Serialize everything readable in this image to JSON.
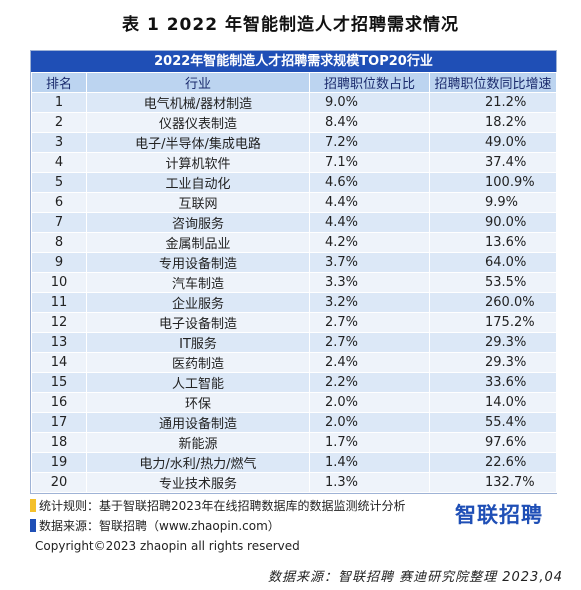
{
  "title": "表 1  2022 年智能制造人才招聘需求情况",
  "table": {
    "banner": "2022年智能制造人才招聘需求规模TOP20行业",
    "headers": [
      "排名",
      "行业",
      "招聘职位数占比",
      "招聘职位数同比增速"
    ],
    "rows": [
      [
        "1",
        "电气机械/器材制造",
        "9.0%",
        "21.2%"
      ],
      [
        "2",
        "仪器仪表制造",
        "8.4%",
        "18.2%"
      ],
      [
        "3",
        "电子/半导体/集成电路",
        "7.2%",
        "49.0%"
      ],
      [
        "4",
        "计算机软件",
        "7.1%",
        "37.4%"
      ],
      [
        "5",
        "工业自动化",
        "4.6%",
        "100.9%"
      ],
      [
        "6",
        "互联网",
        "4.4%",
        "9.9%"
      ],
      [
        "7",
        "咨询服务",
        "4.4%",
        "90.0%"
      ],
      [
        "8",
        "金属制品业",
        "4.2%",
        "13.6%"
      ],
      [
        "9",
        "专用设备制造",
        "3.7%",
        "64.0%"
      ],
      [
        "10",
        "汽车制造",
        "3.3%",
        "53.5%"
      ],
      [
        "11",
        "企业服务",
        "3.2%",
        "260.0%"
      ],
      [
        "12",
        "电子设备制造",
        "2.7%",
        "175.2%"
      ],
      [
        "13",
        "IT服务",
        "2.7%",
        "29.3%"
      ],
      [
        "14",
        "医药制造",
        "2.4%",
        "29.3%"
      ],
      [
        "15",
        "人工智能",
        "2.2%",
        "33.6%"
      ],
      [
        "16",
        "环保",
        "2.0%",
        "14.0%"
      ],
      [
        "17",
        "通用设备制造",
        "2.0%",
        "55.4%"
      ],
      [
        "18",
        "新能源",
        "1.7%",
        "97.6%"
      ],
      [
        "19",
        "电力/水利/热力/燃气",
        "1.4%",
        "22.6%"
      ],
      [
        "20",
        "专业技术服务",
        "1.3%",
        "132.7%"
      ]
    ]
  },
  "notes": {
    "rule": "统计规则：基于智联招聘2023年在线招聘数据库的数据监测统计分析",
    "source": "数据来源：智联招聘（www.zhaopin.com）",
    "logo": "智联招聘"
  },
  "copyright": "Copyright©2023 zhaopin all rights reserved",
  "footer_source": "数据来源：智联招聘 赛迪研究院整理 2023,04",
  "colors": {
    "banner": "#1f4fb6",
    "header": "#bcd4f0",
    "row_odd": "#dce8f7",
    "row_even": "#eef3fa",
    "marker_yellow": "#f4c02a",
    "marker_blue": "#1f4fb6"
  }
}
